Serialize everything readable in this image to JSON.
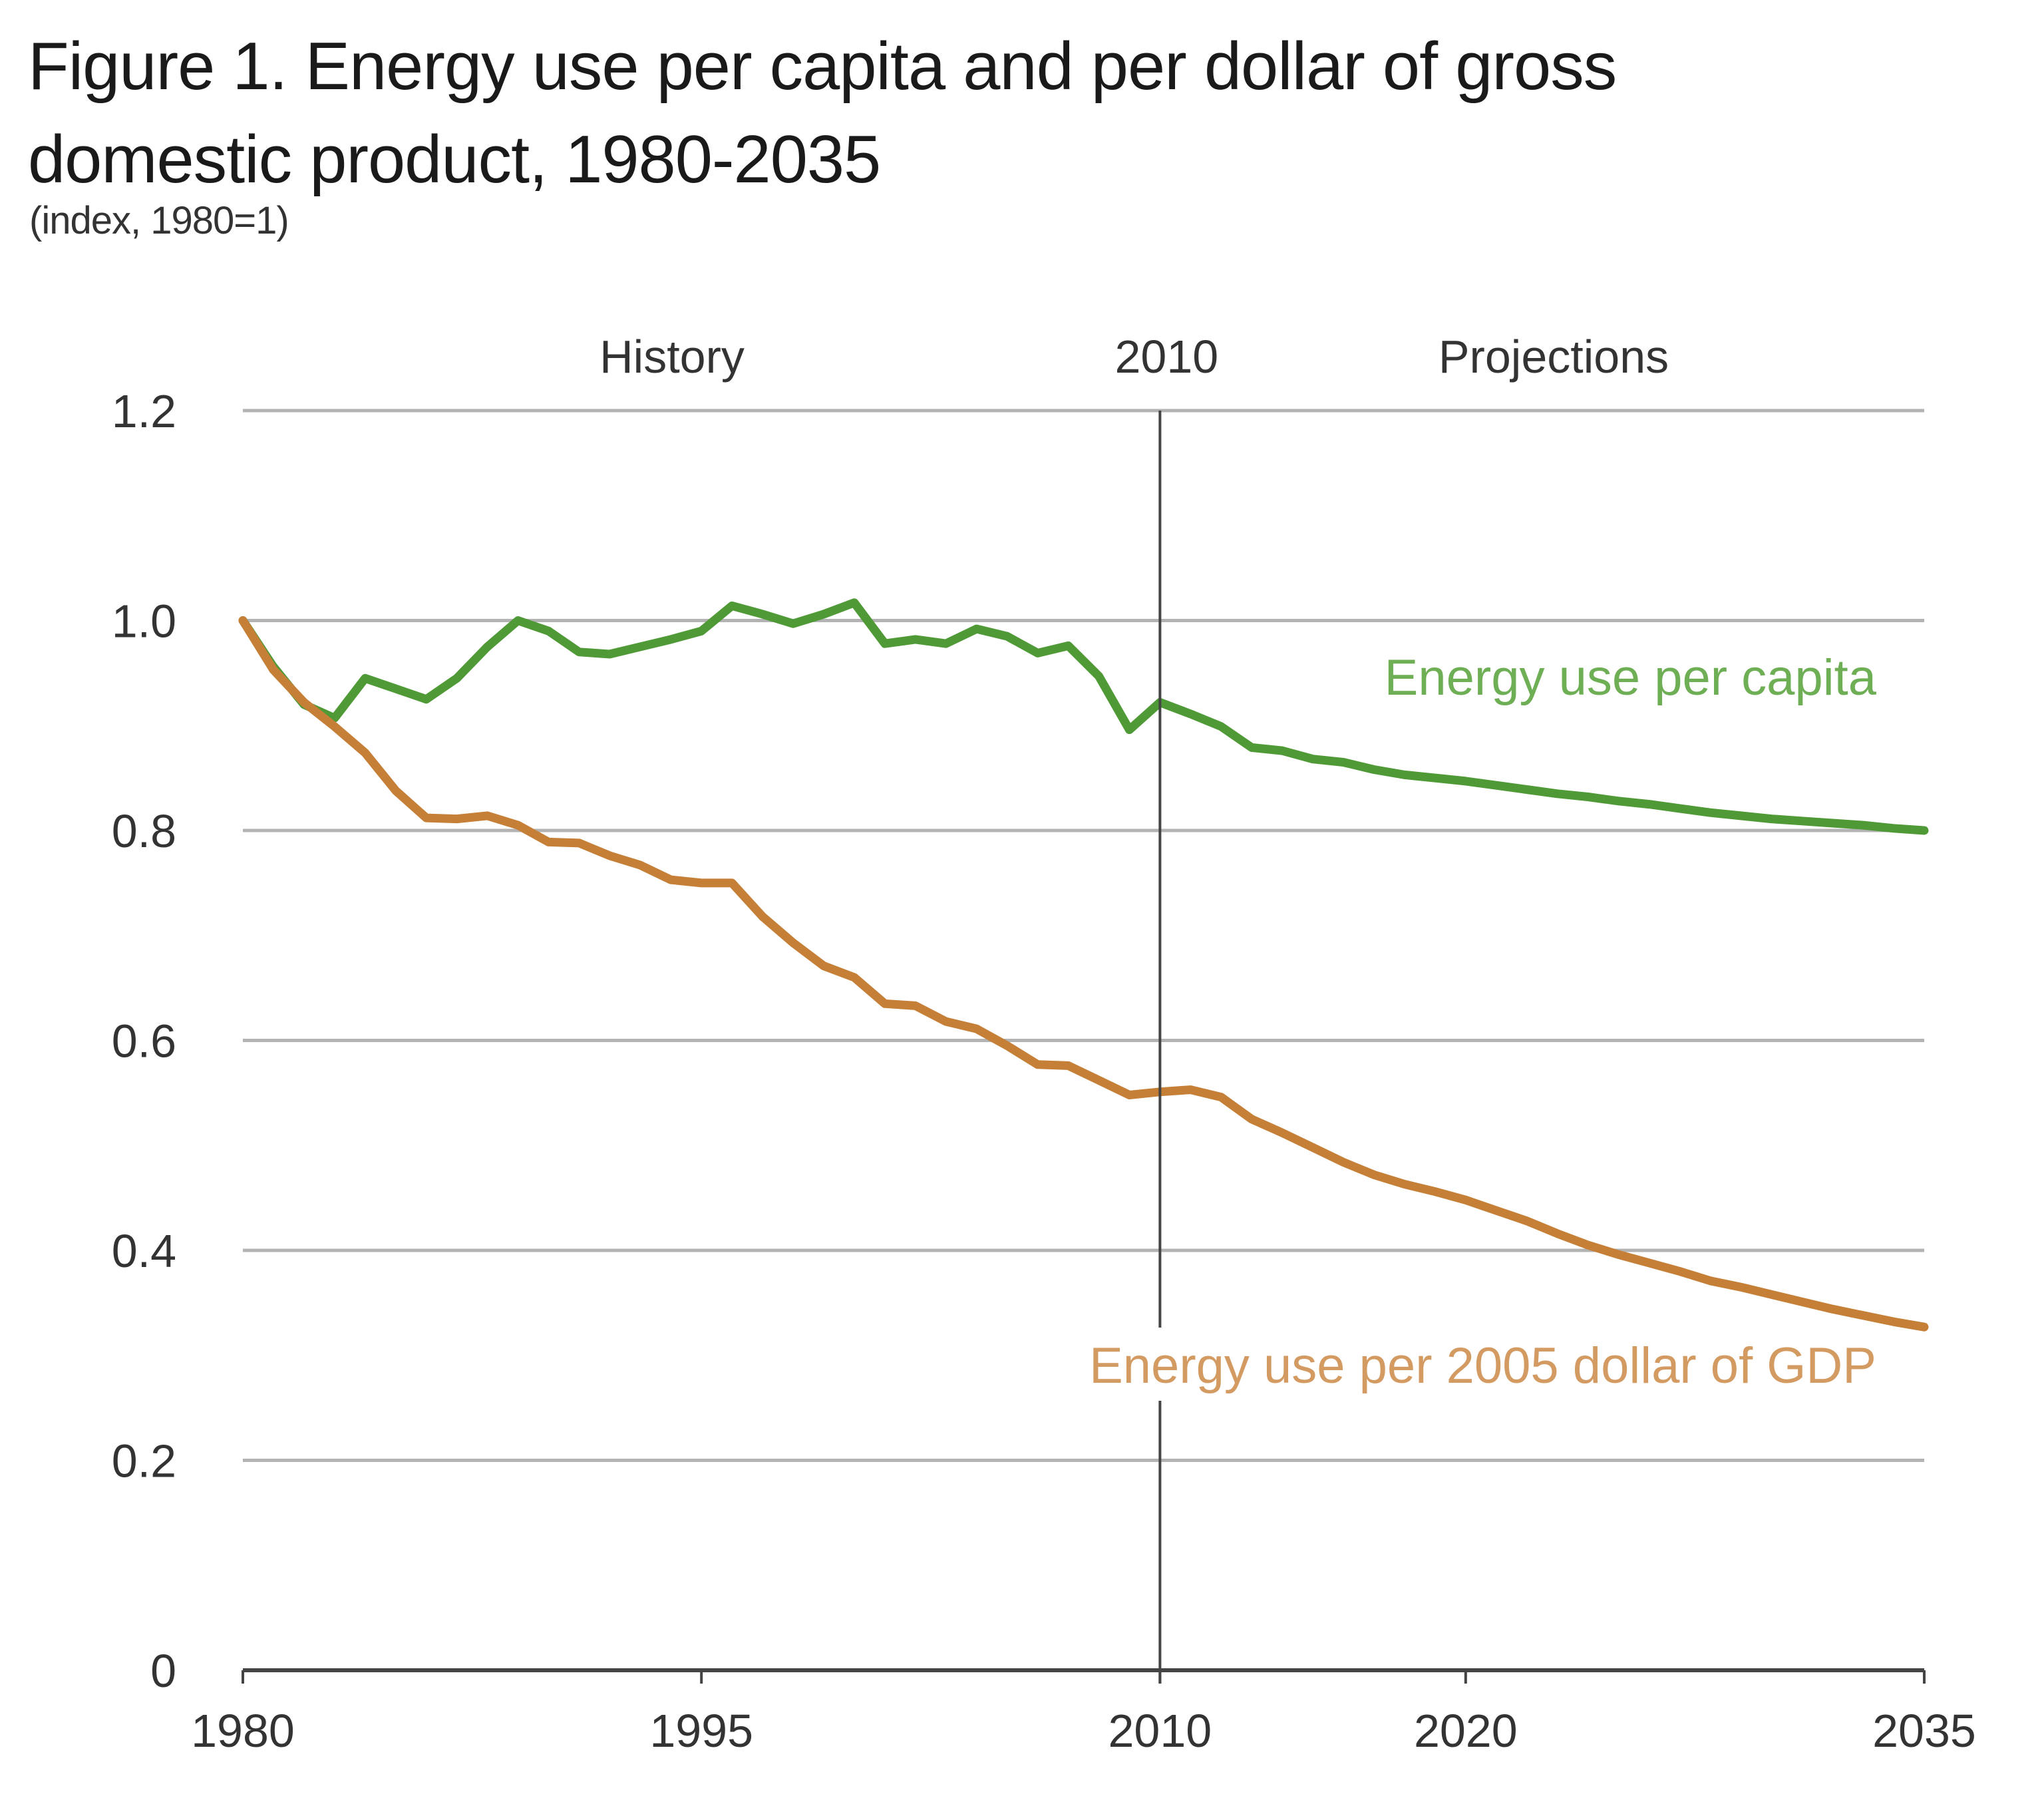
{
  "title_line1": "Figure 1. Energy use per capita and per dollar of gross",
  "title_line2": "domestic product, 1980-2035",
  "subtitle": "(index, 1980=1)",
  "chart_data": {
    "type": "line",
    "title": "Figure 1. Energy use per capita and per dollar of gross domestic product, 1980-2035",
    "subtitle": "(index, 1980=1)",
    "xlabel": "",
    "ylabel": "",
    "xlim": [
      1980,
      2035
    ],
    "ylim": [
      0,
      1.2
    ],
    "grid": "horizontal",
    "x_ticks": [
      1980,
      1995,
      2010,
      2020,
      2035
    ],
    "x_tick_labels": [
      "1980",
      "1995",
      "2010",
      "2020",
      "2035"
    ],
    "y_ticks": [
      0,
      0.2,
      0.4,
      0.6,
      0.8,
      1.0,
      1.2
    ],
    "y_tick_labels": [
      "0",
      "0.2",
      "0.4",
      "0.6",
      "0.8",
      "1.0",
      "1.2"
    ],
    "divider": {
      "x": 2010,
      "label": "2010",
      "left_label": "History",
      "right_label": "Projections"
    },
    "x": [
      1980,
      1981,
      1982,
      1983,
      1984,
      1985,
      1986,
      1987,
      1988,
      1989,
      1990,
      1991,
      1992,
      1993,
      1994,
      1995,
      1996,
      1997,
      1998,
      1999,
      2000,
      2001,
      2002,
      2003,
      2004,
      2005,
      2006,
      2007,
      2008,
      2009,
      2010,
      2011,
      2012,
      2013,
      2014,
      2015,
      2016,
      2017,
      2018,
      2019,
      2020,
      2021,
      2022,
      2023,
      2024,
      2025,
      2026,
      2027,
      2028,
      2029,
      2030,
      2031,
      2032,
      2033,
      2034,
      2035
    ],
    "series": [
      {
        "name": "Energy use per capita",
        "color": "#4f9a36",
        "values": [
          1.0,
          0.956,
          0.92,
          0.907,
          0.945,
          0.935,
          0.925,
          0.945,
          0.975,
          1.0,
          0.99,
          0.97,
          0.968,
          0.975,
          0.982,
          0.99,
          1.014,
          1.006,
          0.997,
          1.006,
          1.017,
          0.978,
          0.982,
          0.978,
          0.992,
          0.985,
          0.969,
          0.976,
          0.947,
          0.896,
          0.922,
          0.911,
          0.899,
          0.879,
          0.876,
          0.868,
          0.865,
          0.858,
          0.853,
          0.85,
          0.847,
          0.843,
          0.839,
          0.835,
          0.832,
          0.828,
          0.825,
          0.821,
          0.817,
          0.814,
          0.811,
          0.809,
          0.807,
          0.805,
          0.802,
          0.8
        ]
      },
      {
        "name": "Energy use per 2005 dollar of GDP",
        "color": "#c57f36",
        "values": [
          1.0,
          0.953,
          0.922,
          0.899,
          0.874,
          0.838,
          0.812,
          0.811,
          0.814,
          0.805,
          0.789,
          0.788,
          0.776,
          0.767,
          0.753,
          0.75,
          0.75,
          0.718,
          0.693,
          0.671,
          0.66,
          0.635,
          0.633,
          0.618,
          0.611,
          0.595,
          0.577,
          0.576,
          0.562,
          0.548,
          0.551,
          0.553,
          0.546,
          0.525,
          0.512,
          0.498,
          0.484,
          0.472,
          0.463,
          0.456,
          0.448,
          0.438,
          0.428,
          0.416,
          0.405,
          0.396,
          0.388,
          0.38,
          0.371,
          0.365,
          0.358,
          0.351,
          0.344,
          0.338,
          0.332,
          0.327
        ]
      }
    ],
    "annotations": [
      {
        "text": "Energy use per capita",
        "series": 0,
        "color": "#6eae55"
      },
      {
        "text": "Energy use per 2005 dollar of GDP",
        "series": 1,
        "color": "#d39a62"
      }
    ]
  }
}
